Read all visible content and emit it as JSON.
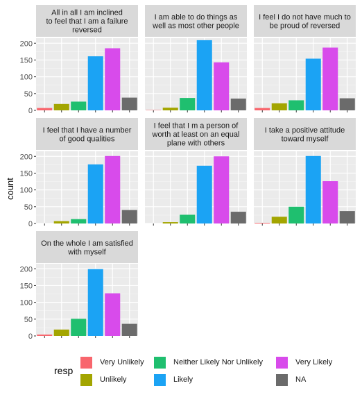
{
  "chart_data": {
    "type": "bar",
    "ylabel": "count",
    "ylim": [
      0,
      215
    ],
    "yticks": [
      0,
      50,
      100,
      150,
      200
    ],
    "categories": [
      "Very Unlikely",
      "Unlikely",
      "Neither Likely Nor Unlikely",
      "Likely",
      "Very Likely",
      "NA"
    ],
    "colors": [
      "#F8766D",
      "#B79F00",
      "#00BA38",
      "#00BFC4",
      "#F564E3",
      "#666666"
    ],
    "bar_colors": [
      "#F8666D",
      "#A3A500",
      "#1FBF6F",
      "#1BA3F4",
      "#D84BEB",
      "#6B6B6B"
    ],
    "facets": [
      {
        "title": "All in all I am inclined to feel that I am a failure reversed",
        "title_lines": [
          "All in all I am inclined",
          "to feel that I am a failure",
          "reversed"
        ],
        "values": [
          7,
          19,
          26,
          161,
          185,
          38
        ]
      },
      {
        "title": "I am able to do things as well as most other people",
        "title_lines": [
          "I am able to do things as",
          "well as most other people"
        ],
        "values": [
          1,
          8,
          37,
          209,
          143,
          35
        ]
      },
      {
        "title": "I feel I do not have much to be proud of reversed",
        "title_lines": [
          "I feel I do not have much to",
          "be proud of reversed"
        ],
        "values": [
          7,
          21,
          30,
          154,
          187,
          36
        ]
      },
      {
        "title": "I feel that I have a number of good qualities",
        "title_lines": [
          "I feel that I have a number",
          "of good qualities"
        ],
        "values": [
          0,
          7,
          13,
          176,
          201,
          40
        ]
      },
      {
        "title": "I feel that I m a person of worth at least on an equal plane with others",
        "title_lines": [
          "I feel that I m a person of",
          "worth at least on an equal",
          "plane with others"
        ],
        "values": [
          0,
          4,
          26,
          172,
          200,
          35
        ]
      },
      {
        "title": "I take a positive attitude toward myself",
        "title_lines": [
          "I take a positive attitude",
          "toward myself"
        ],
        "values": [
          2,
          20,
          50,
          201,
          126,
          37
        ]
      },
      {
        "title": "On the whole I am satisfied with myself",
        "title_lines": [
          "On the whole I am satisfied",
          "with myself"
        ],
        "values": [
          4,
          19,
          51,
          199,
          127,
          36
        ]
      }
    ],
    "legend": {
      "title": "resp",
      "position": "bottom"
    },
    "grid": true
  }
}
